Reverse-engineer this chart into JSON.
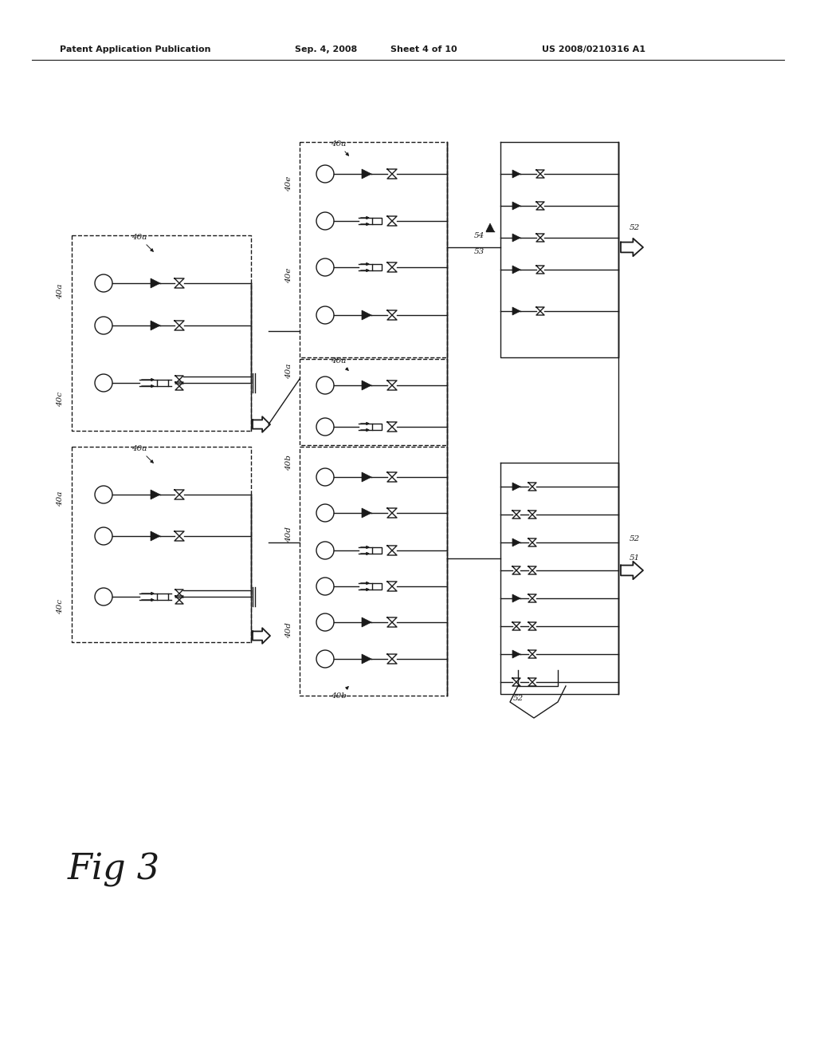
{
  "bg_color": "#ffffff",
  "line_color": "#1a1a1a",
  "header_text": "Patent Application Publication",
  "header_date": "Sep. 4, 2008",
  "header_sheet": "Sheet 4 of 10",
  "header_patent": "US 2008/0210316 A1",
  "fig_label": "Fig 3",
  "lw": 1.0
}
